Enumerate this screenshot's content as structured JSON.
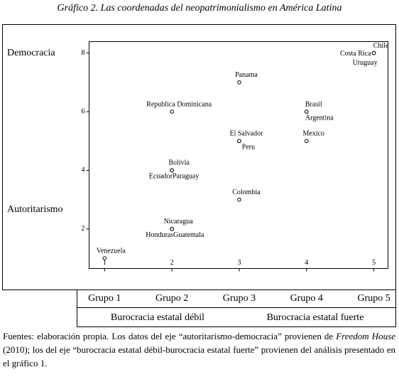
{
  "chart_data": {
    "type": "scatter",
    "title": "Gráfico 2. Las coordenadas del neopatrimonialismo en América Latina",
    "point_labels": [
      "Venezuela",
      "Nicaragua",
      "Honduras",
      "Guatemala",
      "Bolivia",
      "Ecuador",
      "Paraguay",
      "Republica Dominicana",
      "Colombia",
      "El Salvador",
      "Peru",
      "Panama",
      "Mexico",
      "Brasil",
      "Argentina",
      "Chile",
      "Costa Rica",
      "Uruguay"
    ],
    "x": [
      1,
      2,
      2,
      2,
      2,
      2,
      2,
      2,
      3,
      3,
      3,
      3,
      4,
      4,
      4,
      5,
      5,
      5
    ],
    "values": [
      1,
      2,
      2,
      2,
      4,
      4,
      4,
      6,
      3,
      5,
      5,
      7,
      5,
      6,
      6,
      8,
      8,
      8
    ],
    "color": "#000000",
    "xlim": [
      0.77,
      5.21
    ],
    "ylim": [
      0.65,
      8.39
    ],
    "xticks": [
      1,
      2,
      3,
      4,
      5
    ],
    "yticks": [
      2,
      4,
      6,
      8
    ],
    "y_annotations": [
      "Democracia",
      "Autoritarismo"
    ],
    "group_labels": [
      "Grupo 1",
      "Grupo 2",
      "Grupo 3",
      "Grupo 4",
      "Grupo 5"
    ],
    "x_annotations": [
      "Burocracia estatal débil",
      "Burocracia estatal fuerte"
    ]
  },
  "source": [
    "Fuentes: elaboración propia. Los datos del eje “autoritarismo-democracia” provienen de ",
    "Freedom House",
    " (2010); los del eje “burocracia estatal débil-burocracia estatal fuerte” provienen del análisis presentado en el gráfico 1."
  ]
}
